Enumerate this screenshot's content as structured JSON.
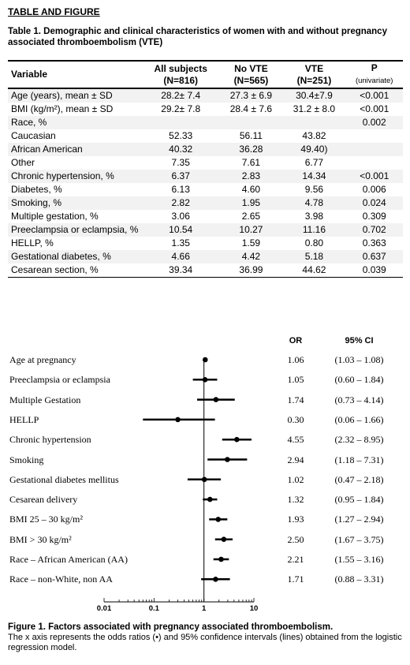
{
  "heading": "TABLE AND FIGURE",
  "table_caption": "Table 1. Demographic and clinical characteristics of women with and without pregnancy associated thromboembolism (VTE)",
  "table": {
    "headers": [
      {
        "line1": "Variable",
        "line2": ""
      },
      {
        "line1": "All subjects",
        "line2": "(N=816)"
      },
      {
        "line1": "No VTE",
        "line2": "(N=565)"
      },
      {
        "line1": "VTE",
        "line2": "(N=251)"
      },
      {
        "line1": "P",
        "line2": "(univariate)"
      }
    ],
    "rows": [
      {
        "variable": "Age (years), mean ± SD",
        "all": "28.2± 7.4",
        "novte": "27.3 ± 6.9",
        "vte": "30.4±7.9",
        "p": "<0.001"
      },
      {
        "variable": "BMI (kg/m²), mean ± SD",
        "all": "29.2± 7.8",
        "novte": "28.4 ± 7.6",
        "vte": "31.2 ± 8.0",
        "p": "<0.001"
      },
      {
        "variable": "Race, %",
        "all": "",
        "novte": "",
        "vte": "",
        "p": "0.002"
      },
      {
        "variable": "Caucasian",
        "all": "52.33",
        "novte": "56.11",
        "vte": "43.82",
        "p": ""
      },
      {
        "variable": "African American",
        "all": "40.32",
        "novte": "36.28",
        "vte": "49.40)",
        "p": ""
      },
      {
        "variable": "Other",
        "all": "7.35",
        "novte": "7.61",
        "vte": "6.77",
        "p": ""
      },
      {
        "variable": "Chronic hypertension, %",
        "all": "6.37",
        "novte": "2.83",
        "vte": "14.34",
        "p": "<0.001"
      },
      {
        "variable": "Diabetes, %",
        "all": "6.13",
        "novte": "4.60",
        "vte": "9.56",
        "p": "0.006"
      },
      {
        "variable": "Smoking, %",
        "all": "2.82",
        "novte": "1.95",
        "vte": "4.78",
        "p": "0.024"
      },
      {
        "variable": "Multiple gestation, %",
        "all": "3.06",
        "novte": "2.65",
        "vte": "3.98",
        "p": "0.309"
      },
      {
        "variable": "Preeclampsia or eclampsia, %",
        "all": "10.54",
        "novte": "10.27",
        "vte": "11.16",
        "p": "0.702"
      },
      {
        "variable": "HELLP, %",
        "all": "1.35",
        "novte": "1.59",
        "vte": "0.80",
        "p": "0.363"
      },
      {
        "variable": "Gestational diabetes, %",
        "all": "4.66",
        "novte": "4.42",
        "vte": "5.18",
        "p": "0.637"
      },
      {
        "variable": "Cesarean section, %",
        "all": "39.34",
        "novte": "36.99",
        "vte": "44.62",
        "p": "0.039"
      }
    ]
  },
  "forest": {
    "or_header": "OR",
    "ci_header": "95% CI"
  },
  "chart_data": {
    "type": "scatter",
    "x_scale": "log",
    "xlim": [
      0.01,
      10
    ],
    "x_ticks": [
      "0.01",
      "0.1",
      "1",
      "10"
    ],
    "reference_line": 1,
    "rows": [
      {
        "label": "Age at pregnancy",
        "or": 1.06,
        "lo": 1.03,
        "hi": 1.08,
        "or_text": "1.06",
        "ci_text": "(1.03 – 1.08)"
      },
      {
        "label": "Preeclampsia or eclampsia",
        "or": 1.05,
        "lo": 0.6,
        "hi": 1.84,
        "or_text": "1.05",
        "ci_text": "(0.60 – 1.84)"
      },
      {
        "label": "Multiple Gestation",
        "or": 1.74,
        "lo": 0.73,
        "hi": 4.14,
        "or_text": "1.74",
        "ci_text": "(0.73 – 4.14)"
      },
      {
        "label": "HELLP",
        "or": 0.3,
        "lo": 0.06,
        "hi": 1.66,
        "or_text": "0.30",
        "ci_text": "(0.06 – 1.66)"
      },
      {
        "label": "Chronic hypertension",
        "or": 4.55,
        "lo": 2.32,
        "hi": 8.95,
        "or_text": "4.55",
        "ci_text": "(2.32 – 8.95)"
      },
      {
        "label": "Smoking",
        "or": 2.94,
        "lo": 1.18,
        "hi": 7.31,
        "or_text": "2.94",
        "ci_text": "(1.18 – 7.31)"
      },
      {
        "label": "Gestational diabetes mellitus",
        "or": 1.02,
        "lo": 0.47,
        "hi": 2.18,
        "or_text": "1.02",
        "ci_text": "(0.47 – 2.18)"
      },
      {
        "label": "Cesarean delivery",
        "or": 1.32,
        "lo": 0.95,
        "hi": 1.84,
        "or_text": "1.32",
        "ci_text": "(0.95 – 1.84)"
      },
      {
        "label": "BMI 25 – 30 kg/m²",
        "or": 1.93,
        "lo": 1.27,
        "hi": 2.94,
        "or_text": "1.93",
        "ci_text": "(1.27 – 2.94)"
      },
      {
        "label": "BMI > 30 kg/m²",
        "or": 2.5,
        "lo": 1.67,
        "hi": 3.75,
        "or_text": "2.50",
        "ci_text": "(1.67 – 3.75)"
      },
      {
        "label": "Race – African American (AA)",
        "or": 2.21,
        "lo": 1.55,
        "hi": 3.16,
        "or_text": "2.21",
        "ci_text": "(1.55 – 3.16)"
      },
      {
        "label": "Race – non-White, non AA",
        "or": 1.71,
        "lo": 0.88,
        "hi": 3.31,
        "or_text": "1.71",
        "ci_text": "(0.88 – 3.31)"
      }
    ]
  },
  "figure_caption": {
    "title": "Figure 1. Factors associated with pregnancy associated thromboembolism.",
    "body": "The x axis represents the odds ratios (•) and 95% confidence intervals (lines) obtained from the logistic regression model."
  }
}
